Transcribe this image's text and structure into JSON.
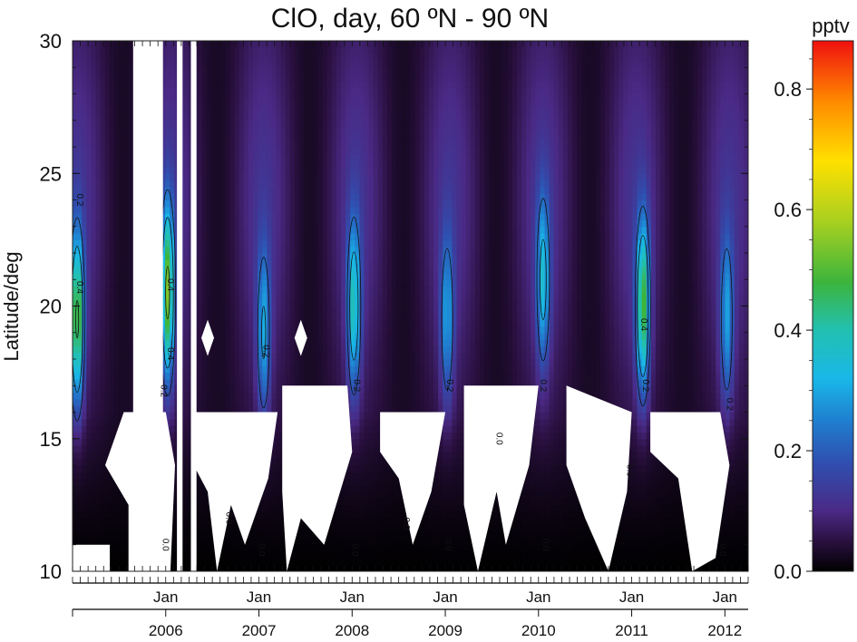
{
  "chart_data": {
    "type": "heatmap",
    "title": "ClO, day, 60 ºN - 90 ºN",
    "ylabel": "Latitude/deg",
    "colorbar_label": "pptv",
    "ylim": [
      10,
      30
    ],
    "yticks": [
      10,
      15,
      20,
      25,
      30
    ],
    "xlim": [
      2005.0,
      2012.25
    ],
    "month_labels": [
      {
        "x": 2006.0,
        "label": "Jan"
      },
      {
        "x": 2007.0,
        "label": "Jan"
      },
      {
        "x": 2008.0,
        "label": "Jan"
      },
      {
        "x": 2009.0,
        "label": "Jan"
      },
      {
        "x": 2010.0,
        "label": "Jan"
      },
      {
        "x": 2011.0,
        "label": "Jan"
      },
      {
        "x": 2012.0,
        "label": "Jan"
      }
    ],
    "year_labels": [
      {
        "x": 2006.0,
        "label": "2006"
      },
      {
        "x": 2007.0,
        "label": "2007"
      },
      {
        "x": 2008.0,
        "label": "2008"
      },
      {
        "x": 2009.0,
        "label": "2009"
      },
      {
        "x": 2010.0,
        "label": "2010"
      },
      {
        "x": 2011.0,
        "label": "2011"
      },
      {
        "x": 2012.0,
        "label": "2012"
      }
    ],
    "colorbar_range": [
      0.0,
      0.88
    ],
    "colorbar_ticks": [
      {
        "v": 0.0,
        "label": "0.0"
      },
      {
        "v": 0.2,
        "label": "0.2"
      },
      {
        "v": 0.4,
        "label": "0.4"
      },
      {
        "v": 0.6,
        "label": "0.6"
      },
      {
        "v": 0.8,
        "label": "0.8"
      }
    ],
    "colormap": [
      {
        "v": 0.0,
        "color": "#000000"
      },
      {
        "v": 0.05,
        "color": "#2a1040"
      },
      {
        "v": 0.1,
        "color": "#4a2a86"
      },
      {
        "v": 0.18,
        "color": "#2f4fb0"
      },
      {
        "v": 0.25,
        "color": "#1f7fd0"
      },
      {
        "v": 0.32,
        "color": "#19b8e8"
      },
      {
        "v": 0.4,
        "color": "#22c0b0"
      },
      {
        "v": 0.48,
        "color": "#3cb43c"
      },
      {
        "v": 0.58,
        "color": "#a8d020"
      },
      {
        "v": 0.68,
        "color": "#ffe000"
      },
      {
        "v": 0.78,
        "color": "#ff8a00"
      },
      {
        "v": 0.88,
        "color": "#f01010"
      }
    ],
    "winter_peaks": [
      {
        "t": 2005.05,
        "peak": 0.42,
        "lat": 19.5
      },
      {
        "t": 2006.02,
        "peak": 0.44,
        "lat": 20.5
      },
      {
        "t": 2007.05,
        "peak": 0.22,
        "lat": 19.0
      },
      {
        "t": 2008.02,
        "peak": 0.3,
        "lat": 20.0
      },
      {
        "t": 2009.02,
        "peak": 0.2,
        "lat": 19.5
      },
      {
        "t": 2010.05,
        "peak": 0.25,
        "lat": 21.0
      },
      {
        "t": 2011.12,
        "peak": 0.4,
        "lat": 20.0
      },
      {
        "t": 2012.02,
        "peak": 0.2,
        "lat": 19.5
      }
    ],
    "contour_labels": [
      {
        "x": 2005.05,
        "y": 24.0,
        "label": "0.2"
      },
      {
        "x": 2005.05,
        "y": 20.7,
        "label": "0.4"
      },
      {
        "x": 2006.02,
        "y": 20.8,
        "label": "0.4"
      },
      {
        "x": 2006.02,
        "y": 18.2,
        "label": "0.4"
      },
      {
        "x": 2005.95,
        "y": 16.8,
        "label": "0.2"
      },
      {
        "x": 2007.05,
        "y": 18.3,
        "label": "0.2"
      },
      {
        "x": 2008.02,
        "y": 17.0,
        "label": "0.2"
      },
      {
        "x": 2009.02,
        "y": 17.0,
        "label": "0.2"
      },
      {
        "x": 2010.02,
        "y": 17.0,
        "label": "0.2"
      },
      {
        "x": 2011.1,
        "y": 19.3,
        "label": "0.4"
      },
      {
        "x": 2011.12,
        "y": 17.0,
        "label": "0.2"
      },
      {
        "x": 2012.02,
        "y": 16.3,
        "label": "0.2"
      },
      {
        "x": 2005.97,
        "y": 11.0,
        "label": "0.0"
      },
      {
        "x": 2006.65,
        "y": 12.0,
        "label": "0.0"
      },
      {
        "x": 2007.0,
        "y": 10.8,
        "label": "0.0"
      },
      {
        "x": 2008.0,
        "y": 10.8,
        "label": "0.0"
      },
      {
        "x": 2008.55,
        "y": 11.8,
        "label": "0.0"
      },
      {
        "x": 2009.0,
        "y": 11.0,
        "label": "0.0"
      },
      {
        "x": 2009.55,
        "y": 15.0,
        "label": "0.0"
      },
      {
        "x": 2010.05,
        "y": 11.0,
        "label": "0.0"
      },
      {
        "x": 2010.95,
        "y": 13.8,
        "label": "0.0"
      },
      {
        "x": 2011.95,
        "y": 10.8,
        "label": "0.0"
      }
    ],
    "missing_columns": [
      {
        "x0": 2005.65,
        "x1": 2005.97
      },
      {
        "x0": 2006.12,
        "x1": 2006.18
      },
      {
        "x0": 2006.27,
        "x1": 2006.33
      }
    ],
    "missing_regions": [
      [
        [
          2005.0,
          10.0
        ],
        [
          2005.4,
          10.0
        ],
        [
          2005.4,
          11.0
        ],
        [
          2005.0,
          11.0
        ]
      ],
      [
        [
          2005.55,
          16.0
        ],
        [
          2006.0,
          16.0
        ],
        [
          2006.1,
          14.0
        ],
        [
          2006.05,
          10.0
        ],
        [
          2005.6,
          10.0
        ],
        [
          2005.6,
          12.5
        ],
        [
          2005.35,
          14.0
        ]
      ],
      [
        [
          2006.3,
          16.0
        ],
        [
          2007.2,
          16.0
        ],
        [
          2007.1,
          13.5
        ],
        [
          2006.85,
          11.0
        ],
        [
          2006.7,
          12.5
        ],
        [
          2006.55,
          10.0
        ],
        [
          2006.45,
          13.0
        ],
        [
          2006.3,
          14.0
        ]
      ],
      [
        [
          2007.25,
          17.0
        ],
        [
          2007.95,
          17.0
        ],
        [
          2008.0,
          14.5
        ],
        [
          2007.7,
          11.0
        ],
        [
          2007.45,
          12.0
        ],
        [
          2007.3,
          10.0
        ],
        [
          2007.25,
          13.0
        ]
      ],
      [
        [
          2008.3,
          16.0
        ],
        [
          2009.0,
          16.0
        ],
        [
          2008.85,
          13.0
        ],
        [
          2008.65,
          11.0
        ],
        [
          2008.5,
          13.5
        ],
        [
          2008.3,
          14.5
        ]
      ],
      [
        [
          2009.2,
          17.0
        ],
        [
          2010.0,
          17.0
        ],
        [
          2009.9,
          14.0
        ],
        [
          2009.65,
          11.0
        ],
        [
          2009.55,
          13.0
        ],
        [
          2009.35,
          10.0
        ],
        [
          2009.2,
          12.5
        ]
      ],
      [
        [
          2010.3,
          17.0
        ],
        [
          2011.0,
          16.0
        ],
        [
          2010.95,
          13.0
        ],
        [
          2010.75,
          10.0
        ],
        [
          2010.5,
          12.0
        ],
        [
          2010.3,
          14.0
        ]
      ],
      [
        [
          2011.2,
          16.0
        ],
        [
          2011.95,
          16.0
        ],
        [
          2012.05,
          14.0
        ],
        [
          2011.9,
          10.5
        ],
        [
          2011.65,
          10.0
        ],
        [
          2011.5,
          13.5
        ],
        [
          2011.2,
          14.5
        ]
      ]
    ],
    "missing_diamonds": [
      {
        "x": 2006.45,
        "y": 18.8
      },
      {
        "x": 2007.45,
        "y": 18.8
      }
    ]
  }
}
